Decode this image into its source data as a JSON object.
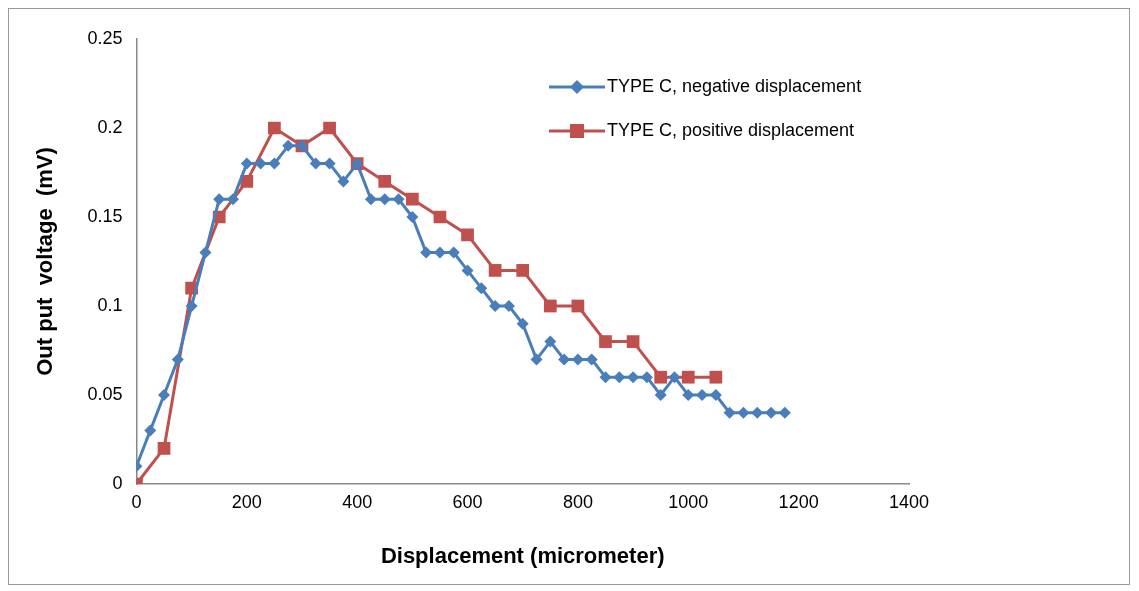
{
  "chart_data": {
    "type": "line",
    "xlabel": "Displacement (micrometer)",
    "ylabel": "Out put  voltage  (mV)",
    "xlim": [
      0,
      1400
    ],
    "xticks": [
      0,
      200,
      400,
      600,
      800,
      1000,
      1200,
      1400
    ],
    "ylim": [
      0,
      0.25
    ],
    "yticks": [
      0,
      0.05,
      0.1,
      0.15,
      0.2,
      0.25
    ],
    "grid": false,
    "legend": "top right",
    "series": [
      {
        "name": "TYPE C, negative displacement",
        "color": "#4a7ebb",
        "marker": "diamond",
        "x": [
          0,
          25,
          50,
          75,
          100,
          125,
          150,
          175,
          200,
          225,
          250,
          275,
          300,
          325,
          350,
          375,
          400,
          425,
          450,
          475,
          500,
          525,
          550,
          575,
          600,
          625,
          650,
          675,
          700,
          725,
          750,
          775,
          800,
          825,
          850,
          875,
          900,
          925,
          950,
          975,
          1000,
          1025,
          1050,
          1075,
          1100,
          1125,
          1150,
          1175
        ],
        "values": [
          0.01,
          0.03,
          0.05,
          0.07,
          0.1,
          0.13,
          0.16,
          0.16,
          0.18,
          0.18,
          0.18,
          0.19,
          0.19,
          0.18,
          0.18,
          0.17,
          0.18,
          0.16,
          0.16,
          0.16,
          0.15,
          0.13,
          0.13,
          0.13,
          0.12,
          0.11,
          0.1,
          0.1,
          0.09,
          0.07,
          0.08,
          0.07,
          0.07,
          0.07,
          0.06,
          0.06,
          0.06,
          0.06,
          0.05,
          0.06,
          0.05,
          0.05,
          0.05,
          0.04,
          0.04,
          0.04,
          0.04,
          0.04
        ]
      },
      {
        "name": "TYPE C, positive displacement",
        "color": "#c0504d",
        "marker": "square",
        "x": [
          0,
          50,
          100,
          150,
          200,
          250,
          300,
          350,
          400,
          450,
          500,
          550,
          600,
          650,
          700,
          750,
          800,
          850,
          900,
          950,
          1000,
          1050
        ],
        "values": [
          0,
          0.02,
          0.11,
          0.15,
          0.17,
          0.2,
          0.19,
          0.2,
          0.18,
          0.17,
          0.16,
          0.15,
          0.14,
          0.12,
          0.12,
          0.1,
          0.1,
          0.08,
          0.08,
          0.06,
          0.06,
          0.06
        ]
      }
    ]
  }
}
